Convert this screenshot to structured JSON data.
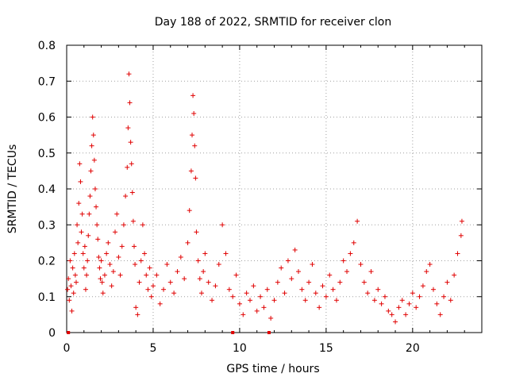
{
  "chart_data": {
    "type": "scatter",
    "title": "Day 188 of 2022, SRMTID for receiver clon",
    "xlabel": "GPS time / hours",
    "ylabel": "SRMTID / TECUs",
    "xlim": [
      0,
      24
    ],
    "ylim": [
      0,
      0.8
    ],
    "x_ticks": [
      0,
      5,
      10,
      15,
      20
    ],
    "x_tick_labels": [
      "0",
      "5",
      "10",
      "15",
      "20"
    ],
    "y_ticks": [
      0,
      0.1,
      0.2,
      0.3,
      0.4,
      0.5,
      0.6,
      0.7,
      0.8
    ],
    "y_tick_labels": [
      "0",
      "0.1",
      "0.2",
      "0.3",
      "0.4",
      "0.5",
      "0.6",
      "0.7",
      "0.8"
    ],
    "grid": true,
    "marker": "+",
    "color": "#e00000",
    "series": [
      {
        "name": "SRMTID",
        "x": [
          0.05,
          0.1,
          0.15,
          0.2,
          0.25,
          0.3,
          0.35,
          0.4,
          0.45,
          0.5,
          0.55,
          0.6,
          0.65,
          0.7,
          0.75,
          0.8,
          0.85,
          0.9,
          0.95,
          1.0,
          1.05,
          1.1,
          1.15,
          1.2,
          1.25,
          1.3,
          1.35,
          1.4,
          1.45,
          1.5,
          1.55,
          1.6,
          1.65,
          1.7,
          1.75,
          1.8,
          1.85,
          1.9,
          1.95,
          2.0,
          2.05,
          2.1,
          2.2,
          2.3,
          2.4,
          2.5,
          2.6,
          2.7,
          2.8,
          2.9,
          3.0,
          3.1,
          3.2,
          3.3,
          3.4,
          3.5,
          3.55,
          3.6,
          3.65,
          3.7,
          3.75,
          3.8,
          3.85,
          3.9,
          3.95,
          4.0,
          4.1,
          4.2,
          4.3,
          4.4,
          4.5,
          4.6,
          4.7,
          4.8,
          4.9,
          5.0,
          5.2,
          5.4,
          5.6,
          5.8,
          6.0,
          6.2,
          6.4,
          6.6,
          6.8,
          7.0,
          7.1,
          7.2,
          7.25,
          7.3,
          7.35,
          7.4,
          7.45,
          7.5,
          7.6,
          7.7,
          7.8,
          7.9,
          8.0,
          8.2,
          8.4,
          8.6,
          8.8,
          9.0,
          9.2,
          9.4,
          9.6,
          9.8,
          10.0,
          10.2,
          10.4,
          10.6,
          10.8,
          11.0,
          11.2,
          11.4,
          11.6,
          11.8,
          12.0,
          12.2,
          12.4,
          12.6,
          12.8,
          13.0,
          13.2,
          13.4,
          13.6,
          13.8,
          14.0,
          14.2,
          14.4,
          14.6,
          14.8,
          15.0,
          15.2,
          15.4,
          15.6,
          15.8,
          16.0,
          16.2,
          16.4,
          16.6,
          16.8,
          17.0,
          17.2,
          17.4,
          17.6,
          17.8,
          18.0,
          18.2,
          18.4,
          18.6,
          18.8,
          19.0,
          19.2,
          19.4,
          19.6,
          19.8,
          20.0,
          20.2,
          20.4,
          20.6,
          20.8,
          21.0,
          21.2,
          21.4,
          21.6,
          21.8,
          22.0,
          22.2,
          22.4,
          22.6,
          22.8,
          22.85
        ],
        "y": [
          0.12,
          0.15,
          0.09,
          0.2,
          0.13,
          0.06,
          0.18,
          0.11,
          0.22,
          0.16,
          0.14,
          0.3,
          0.25,
          0.36,
          0.47,
          0.42,
          0.28,
          0.33,
          0.22,
          0.18,
          0.24,
          0.12,
          0.16,
          0.2,
          0.27,
          0.33,
          0.38,
          0.45,
          0.52,
          0.6,
          0.55,
          0.48,
          0.4,
          0.35,
          0.3,
          0.26,
          0.21,
          0.18,
          0.15,
          0.2,
          0.14,
          0.11,
          0.16,
          0.22,
          0.25,
          0.19,
          0.13,
          0.17,
          0.28,
          0.33,
          0.21,
          0.16,
          0.24,
          0.3,
          0.38,
          0.46,
          0.57,
          0.72,
          0.64,
          0.53,
          0.47,
          0.39,
          0.31,
          0.24,
          0.19,
          0.07,
          0.05,
          0.14,
          0.2,
          0.3,
          0.22,
          0.16,
          0.12,
          0.18,
          0.1,
          0.13,
          0.16,
          0.08,
          0.12,
          0.19,
          0.14,
          0.11,
          0.17,
          0.21,
          0.15,
          0.25,
          0.34,
          0.45,
          0.55,
          0.66,
          0.61,
          0.52,
          0.43,
          0.28,
          0.2,
          0.15,
          0.11,
          0.17,
          0.22,
          0.14,
          0.09,
          0.13,
          0.19,
          0.3,
          0.22,
          0.12,
          0.1,
          0.16,
          0.08,
          0.05,
          0.11,
          0.09,
          0.13,
          0.06,
          0.1,
          0.07,
          0.12,
          0.04,
          0.09,
          0.14,
          0.18,
          0.11,
          0.2,
          0.15,
          0.23,
          0.17,
          0.12,
          0.09,
          0.14,
          0.19,
          0.11,
          0.07,
          0.13,
          0.1,
          0.16,
          0.12,
          0.09,
          0.14,
          0.2,
          0.17,
          0.22,
          0.25,
          0.31,
          0.19,
          0.14,
          0.11,
          0.17,
          0.09,
          0.12,
          0.08,
          0.1,
          0.06,
          0.05,
          0.03,
          0.07,
          0.09,
          0.05,
          0.08,
          0.11,
          0.07,
          0.1,
          0.13,
          0.17,
          0.19,
          0.12,
          0.08,
          0.05,
          0.1,
          0.14,
          0.09,
          0.16,
          0.22,
          0.27,
          0.31
        ]
      }
    ],
    "zero_markers_x": [
      0.1,
      9.6,
      11.7
    ]
  }
}
